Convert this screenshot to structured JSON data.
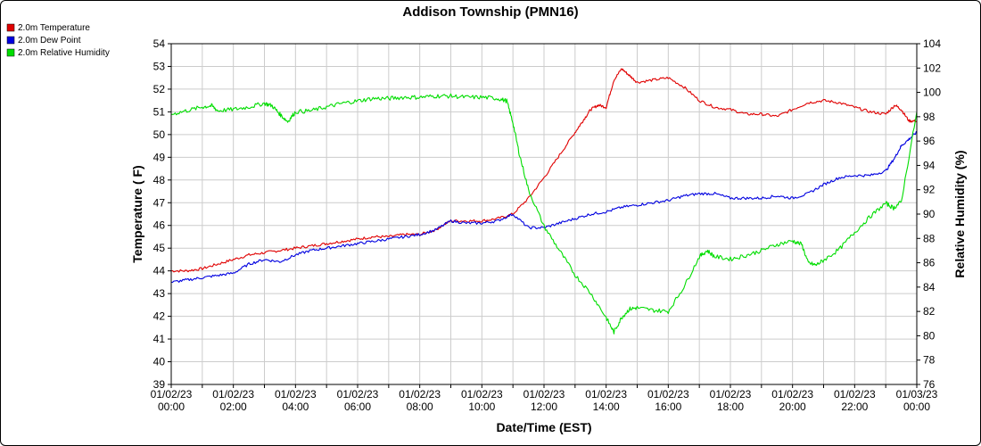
{
  "chart_data": {
    "type": "line",
    "title": "Addison Township (PMN16)",
    "xlabel": "Date/Time (EST)",
    "ylabel_left": "Temperature ( F)",
    "ylabel_right": "Relative Humidity (%)",
    "ylim_left": [
      39,
      54
    ],
    "ylim_right": [
      76,
      104
    ],
    "xlim_hours": [
      0,
      24
    ],
    "grid": true,
    "legend_position": "top-left",
    "x_ticks": [
      {
        "hour": 0,
        "date": "01/02/23",
        "time": "00:00"
      },
      {
        "hour": 2,
        "date": "01/02/23",
        "time": "02:00"
      },
      {
        "hour": 4,
        "date": "01/02/23",
        "time": "04:00"
      },
      {
        "hour": 6,
        "date": "01/02/23",
        "time": "06:00"
      },
      {
        "hour": 8,
        "date": "01/02/23",
        "time": "08:00"
      },
      {
        "hour": 10,
        "date": "01/02/23",
        "time": "10:00"
      },
      {
        "hour": 12,
        "date": "01/02/23",
        "time": "12:00"
      },
      {
        "hour": 14,
        "date": "01/02/23",
        "time": "14:00"
      },
      {
        "hour": 16,
        "date": "01/02/23",
        "time": "16:00"
      },
      {
        "hour": 18,
        "date": "01/02/23",
        "time": "18:00"
      },
      {
        "hour": 20,
        "date": "01/02/23",
        "time": "20:00"
      },
      {
        "hour": 22,
        "date": "01/02/23",
        "time": "22:00"
      },
      {
        "hour": 24,
        "date": "01/03/23",
        "time": "00:00"
      }
    ],
    "left_ticks": [
      39,
      40,
      41,
      42,
      43,
      44,
      45,
      46,
      47,
      48,
      49,
      50,
      51,
      52,
      53,
      54
    ],
    "right_ticks": [
      76,
      78,
      80,
      82,
      84,
      86,
      88,
      90,
      92,
      94,
      96,
      98,
      100,
      102,
      104
    ],
    "series": [
      {
        "name": "2.0m Temperature",
        "axis": "left",
        "color": "#e00000",
        "x": [
          0,
          0.5,
          1,
          1.5,
          2,
          2.5,
          3,
          3.5,
          4,
          4.5,
          5,
          5.5,
          6,
          6.5,
          7,
          7.5,
          8,
          8.5,
          9,
          9.5,
          10,
          10.5,
          11,
          11.5,
          12,
          12.5,
          13,
          13.25,
          13.5,
          13.75,
          14,
          14.25,
          14.5,
          14.75,
          15,
          15.5,
          16,
          16.5,
          17,
          17.5,
          18,
          18.5,
          19,
          19.5,
          20,
          20.5,
          21,
          21.5,
          22,
          22.5,
          23,
          23.3,
          23.5,
          23.75,
          24
        ],
        "y": [
          44.0,
          44.0,
          44.1,
          44.3,
          44.5,
          44.7,
          44.8,
          44.9,
          45.0,
          45.1,
          45.2,
          45.3,
          45.4,
          45.5,
          45.5,
          45.6,
          45.6,
          45.8,
          46.2,
          46.2,
          46.2,
          46.3,
          46.5,
          47.2,
          48.1,
          49.1,
          50.1,
          50.6,
          51.1,
          51.3,
          51.2,
          52.4,
          52.9,
          52.6,
          52.3,
          52.4,
          52.5,
          52.1,
          51.5,
          51.2,
          51.1,
          50.9,
          50.9,
          50.8,
          51.1,
          51.4,
          51.5,
          51.4,
          51.2,
          51.0,
          50.9,
          51.3,
          51.1,
          50.6,
          50.6
        ]
      },
      {
        "name": "2.0m Dew Point",
        "axis": "left",
        "color": "#0000e0",
        "x": [
          0,
          0.5,
          1,
          1.5,
          2,
          2.5,
          3,
          3.5,
          4,
          4.5,
          5,
          5.5,
          6,
          6.5,
          7,
          7.5,
          8,
          8.5,
          9,
          9.5,
          10,
          10.5,
          11,
          11.5,
          12,
          12.5,
          13,
          13.5,
          14,
          14.5,
          15,
          15.5,
          16,
          16.5,
          17,
          17.5,
          18,
          18.5,
          19,
          19.5,
          20,
          20.5,
          21,
          21.5,
          22,
          22.5,
          23,
          23.3,
          23.5,
          23.75,
          24
        ],
        "y": [
          43.5,
          43.6,
          43.7,
          43.8,
          43.9,
          44.3,
          44.5,
          44.4,
          44.7,
          44.9,
          45.0,
          45.1,
          45.2,
          45.3,
          45.4,
          45.5,
          45.6,
          45.8,
          46.2,
          46.1,
          46.1,
          46.2,
          46.5,
          45.9,
          45.9,
          46.1,
          46.3,
          46.5,
          46.6,
          46.8,
          46.9,
          47.0,
          47.1,
          47.3,
          47.4,
          47.4,
          47.2,
          47.2,
          47.2,
          47.3,
          47.2,
          47.4,
          47.8,
          48.1,
          48.2,
          48.2,
          48.4,
          49.0,
          49.5,
          49.8,
          50.1
        ]
      },
      {
        "name": "2.0m Relative Humidity",
        "axis": "right",
        "color": "#00dd00",
        "x": [
          0,
          0.5,
          1,
          1.3,
          1.5,
          2,
          2.5,
          3,
          3.25,
          3.5,
          3.75,
          4,
          4.5,
          5,
          5.5,
          6,
          6.5,
          7,
          7.5,
          8,
          8.5,
          9,
          9.5,
          10,
          10.5,
          10.8,
          11,
          11.2,
          11.5,
          12,
          12.5,
          13,
          13.5,
          14,
          14.25,
          14.5,
          14.75,
          15,
          15.5,
          16,
          16.5,
          17,
          17.25,
          17.5,
          18,
          18.5,
          19,
          19.5,
          20,
          20.3,
          20.5,
          20.75,
          21,
          21.5,
          22,
          22.5,
          23,
          23.25,
          23.5,
          24
        ],
        "y": [
          98.2,
          98.5,
          98.8,
          98.9,
          98.5,
          98.6,
          98.8,
          99.1,
          98.9,
          98.2,
          97.6,
          98.4,
          98.5,
          98.8,
          99.1,
          99.3,
          99.5,
          99.5,
          99.6,
          99.6,
          99.7,
          99.7,
          99.6,
          99.6,
          99.5,
          99.3,
          97.5,
          95.0,
          92.0,
          89.0,
          87.0,
          85.0,
          83.5,
          81.5,
          80.3,
          81.5,
          82.2,
          82.3,
          82.1,
          82.0,
          84.0,
          86.5,
          87.0,
          86.5,
          86.3,
          86.6,
          87.0,
          87.5,
          87.8,
          87.5,
          86.0,
          85.8,
          86.2,
          87.1,
          88.5,
          89.8,
          90.9,
          90.5,
          91.0,
          98.4
        ]
      }
    ]
  }
}
